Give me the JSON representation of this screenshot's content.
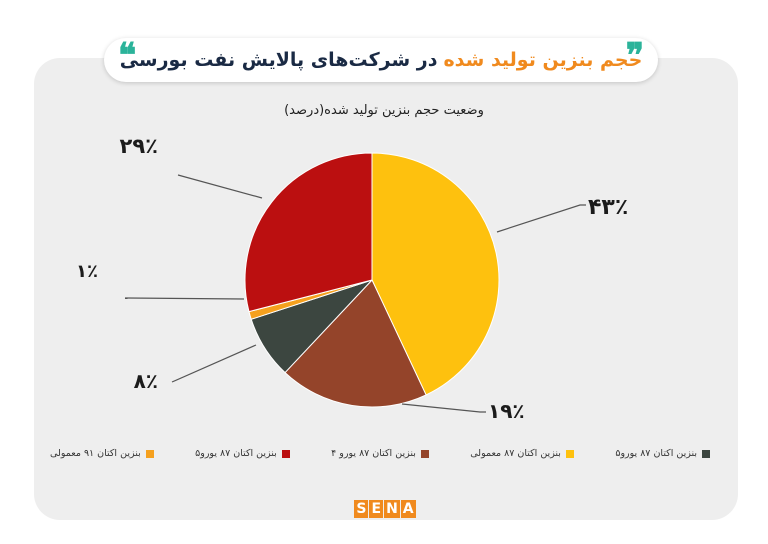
{
  "header": {
    "title_part1": "حجم بنزین تولید شده",
    "title_part2": "در شرکت‌های پالایش نفت بورسی"
  },
  "logo": {
    "letters": [
      "S",
      "E",
      "N",
      "A"
    ]
  },
  "chart_data": {
    "type": "pie",
    "title": "وضعیت حجم بنزین تولید شده(درصد)",
    "slices": [
      {
        "label": "بنزین اکتان ۸۷ معمولی",
        "value": 43,
        "display": "۴۳٪",
        "color": "#fec10e"
      },
      {
        "label": "بنزین اکتان ۸۷ یورو ۴",
        "value": 19,
        "display": "۱۹٪",
        "color": "#94442a"
      },
      {
        "label": "بنزین اکتان ۸۷ یورو۵",
        "value": 8,
        "display": "۸٪",
        "color": "#3c4640"
      },
      {
        "label": "بنزین اکتان ۹۱ معمولی",
        "value": 1,
        "display": "۱٪",
        "color": "#f5a01e"
      },
      {
        "label": "بنزین اکتان ۸۷ یورو۵",
        "value": 29,
        "display": "۲۹٪",
        "color": "#bb0f10"
      }
    ],
    "legend": [
      {
        "label": "بنزین اکتان ۹۱ معمولی",
        "color": "#f5a01e"
      },
      {
        "label": "بنزین اکتان ۸۷ یورو۵",
        "color": "#bb0f10"
      },
      {
        "label": "بنزین اکتان ۸۷ یورو ۴",
        "color": "#94442a"
      },
      {
        "label": "بنزین اکتان ۸۷ معمولی",
        "color": "#fec10e"
      },
      {
        "label": "بنزین اکتان ۸۷ یورو۵",
        "color": "#3c4640"
      }
    ],
    "legend_position": "bottom"
  }
}
